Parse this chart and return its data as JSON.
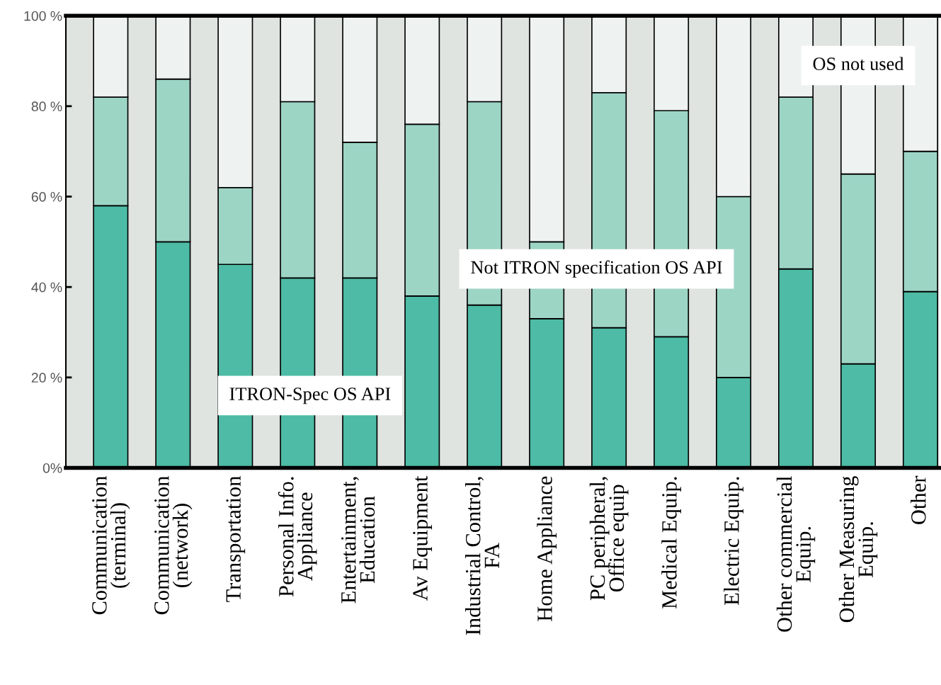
{
  "chart_data": {
    "type": "bar",
    "stacked": true,
    "categories": [
      "Communication\n(terminal)",
      "Communication\n(network)",
      "Transportation",
      "Personal Info.\nAppliance",
      "Entertainment,\nEducation",
      "Av Equipment",
      "Industrial Control,\nFA",
      "Home Appliance",
      "PC peripheral,\nOffice equip",
      "Medical Equip.",
      "Electric Equip.",
      "Other commercial\nEquip.",
      "Other Measuring\nEquip.",
      "Other"
    ],
    "series": [
      {
        "name": "ITRON-Spec OS API",
        "color": "#4dbba5",
        "values": [
          58,
          50,
          45,
          42,
          42,
          38,
          36,
          33,
          31,
          29,
          20,
          44,
          23,
          39
        ]
      },
      {
        "name": "Not ITRON specification OS API",
        "color": "#9dd5c5",
        "values": [
          24,
          36,
          17,
          39,
          30,
          38,
          45,
          17,
          52,
          50,
          40,
          38,
          42,
          31
        ]
      },
      {
        "name": "OS not used",
        "color": "#eef3f1",
        "values": [
          18,
          14,
          38,
          19,
          28,
          24,
          19,
          50,
          17,
          21,
          40,
          18,
          35,
          30
        ]
      }
    ],
    "ylim": [
      0,
      100
    ],
    "yticks": [
      {
        "value": 0,
        "label": "0%"
      },
      {
        "value": 20,
        "label": "20 %"
      },
      {
        "value": 40,
        "label": "40 %"
      },
      {
        "value": 60,
        "label": "60 %"
      },
      {
        "value": 80,
        "label": "80 %"
      },
      {
        "value": 100,
        "label": "100 %"
      }
    ],
    "grid": false
  }
}
